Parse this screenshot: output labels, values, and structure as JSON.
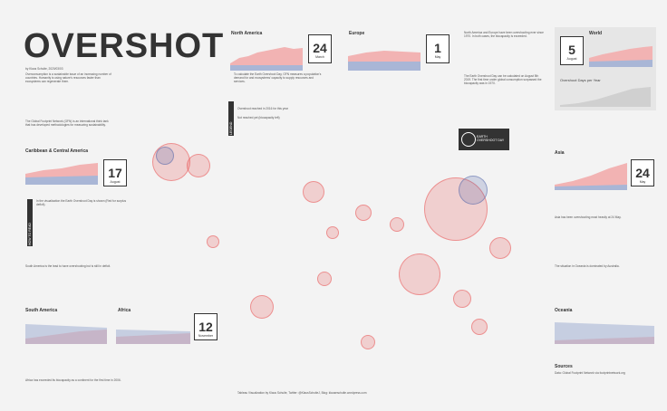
{
  "title": "OVERSHOT",
  "byline": "by Klaus Schulte, 2020/03/03",
  "intro_text": "Overconsumption is a sustainable issue of an increasing number of countries. Humanity is using nature's resources faster than ecosystems can regenerate them.",
  "gfn_text": "The Global Footprint Network (GFN) is an international think tank that has developed methodologies for measuring sustainability.",
  "earth_day_text": "To calculate the Earth Overshoot Day, GFN measures a population's demand for and ecosystems' capacity to supply resources and services.",
  "earth_day_badge": "EARTH OVERSHOOT DAY",
  "regions": {
    "north_america": {
      "label": "North America",
      "day": "24",
      "month": "March"
    },
    "europe": {
      "label": "Europe",
      "day": "1",
      "month": "May"
    },
    "world": {
      "label": "World",
      "day": "5",
      "month": "August"
    },
    "caribbean": {
      "label": "Caribbean & Central America",
      "day": "17",
      "month": "August"
    },
    "asia": {
      "label": "Asia",
      "day": "24",
      "month": "May"
    },
    "south_america": {
      "label": "South America",
      "day": "",
      "month": ""
    },
    "africa": {
      "label": "Africa",
      "day": "12",
      "month": "November"
    },
    "oceania": {
      "label": "Oceania",
      "day": "",
      "month": ""
    }
  },
  "world_chart_label": "Overshoot Days per Year",
  "north_america_text": "North America and Europe have been overshooting ever since 1970. In both cases, the biocapacity is exceeded.",
  "europe_text": "The Earth Overshoot Day can be calculated on August 5th 2019. The first time under global consumption surpassed the biocapacity was in 1970.",
  "caribbean_text": "In the visualization the Earth Overshoot Day is shown (Red for surplus deficit).",
  "south_america_text": "South America is the lead to have overshooting but is still in deficit.",
  "africa_text": "Africa has exceeded its biocapacity as a continent for the first time in 2006.",
  "asia_text": "Asia has been overshooting most heavily at 24 May.",
  "oceania_text": "The situation in Oceania is dominated by Australia.",
  "legend": {
    "reached": "Overshoot reached in 2016 for this year",
    "not_reached": "Not reached yet (biocapacity left)"
  },
  "sources_label": "Sources",
  "sources_text": "Data: Global Footprint Network via footprintnetwork.org",
  "footer_text": "Tableau Visualization by Klaus Schulte, Twitter: @KlausSchulteJ, Blog: klauseschulte.wordpress.com",
  "colors": {
    "red": "#e95050",
    "blue": "#5064aa",
    "dark": "#333333"
  }
}
